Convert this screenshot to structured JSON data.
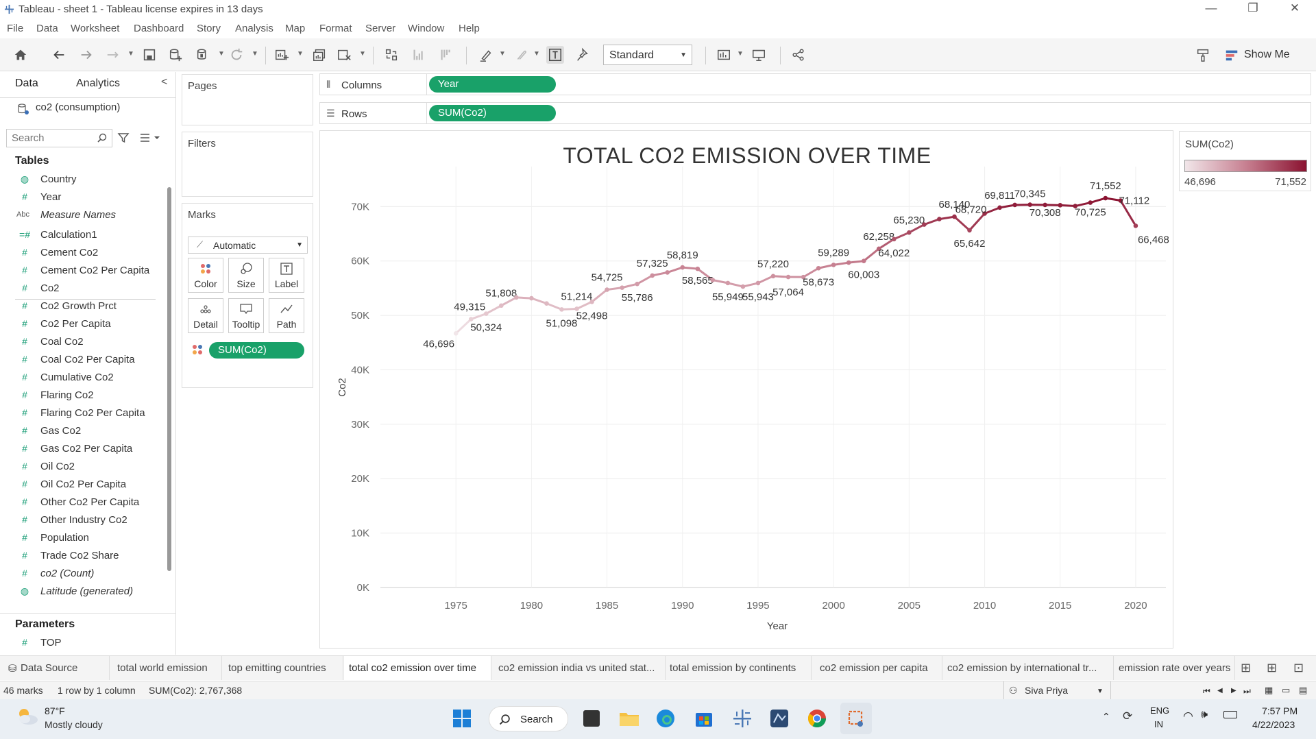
{
  "window": {
    "title": "Tableau - sheet 1 - Tableau license expires in 13 days",
    "minimize": "—",
    "maximize": "❐",
    "close": "✕"
  },
  "menu": [
    "File",
    "Data",
    "Worksheet",
    "Dashboard",
    "Story",
    "Analysis",
    "Map",
    "Format",
    "Server",
    "Window",
    "Help"
  ],
  "toolbar": {
    "fit_value": "Standard",
    "show_me": "Show Me"
  },
  "data_pane": {
    "tab_data": "Data",
    "tab_analytics": "Analytics",
    "data_source": "co2 (consumption)",
    "search_placeholder": "Search",
    "tables_heading": "Tables",
    "fields": [
      {
        "icon": "globe",
        "label": "Country"
      },
      {
        "icon": "#",
        "label": "Year"
      },
      {
        "icon": "Abc",
        "label": "Measure Names",
        "italic": true
      },
      {
        "icon": "=#",
        "label": "Calculation1"
      },
      {
        "icon": "#",
        "label": "Cement Co2"
      },
      {
        "icon": "#",
        "label": "Cement Co2 Per Capita"
      },
      {
        "icon": "#",
        "label": "Co2"
      },
      {
        "icon": "#",
        "label": "Co2 Growth Prct"
      },
      {
        "icon": "#",
        "label": "Co2 Per Capita"
      },
      {
        "icon": "#",
        "label": "Coal Co2"
      },
      {
        "icon": "#",
        "label": "Coal Co2 Per Capita"
      },
      {
        "icon": "#",
        "label": "Cumulative Co2"
      },
      {
        "icon": "#",
        "label": "Flaring Co2"
      },
      {
        "icon": "#",
        "label": "Flaring Co2 Per Capita"
      },
      {
        "icon": "#",
        "label": "Gas Co2"
      },
      {
        "icon": "#",
        "label": "Gas Co2 Per Capita"
      },
      {
        "icon": "#",
        "label": "Oil Co2"
      },
      {
        "icon": "#",
        "label": "Oil Co2 Per Capita"
      },
      {
        "icon": "#",
        "label": "Other Co2 Per Capita"
      },
      {
        "icon": "#",
        "label": "Other Industry Co2"
      },
      {
        "icon": "#",
        "label": "Population"
      },
      {
        "icon": "#",
        "label": "Trade Co2 Share"
      },
      {
        "icon": "#",
        "label": "co2 (Count)",
        "italic": true
      },
      {
        "icon": "globe",
        "label": "Latitude (generated)",
        "italic": true
      }
    ],
    "parameters_heading": "Parameters",
    "parameters": [
      {
        "icon": "#",
        "label": "TOP"
      }
    ]
  },
  "cards": {
    "pages": "Pages",
    "filters": "Filters",
    "marks": "Marks",
    "mark_type": "Automatic",
    "mark_buttons": [
      "Color",
      "Size",
      "Label",
      "Detail",
      "Tooltip",
      "Path"
    ],
    "mark_pill": "SUM(Co2)"
  },
  "shelves": {
    "columns_label": "Columns",
    "columns_pill": "Year",
    "rows_label": "Rows",
    "rows_pill": "SUM(Co2)"
  },
  "legend": {
    "title": "SUM(Co2)",
    "min": "46,696",
    "max": "71,552"
  },
  "chart_data": {
    "type": "line",
    "title": "TOTAL CO2 EMISSION OVER TIME",
    "xlabel": "Year",
    "ylabel": "Co2",
    "xlim": [
      1970,
      2022
    ],
    "ylim": [
      0,
      70000
    ],
    "x_ticks": [
      "1975",
      "1980",
      "1985",
      "1990",
      "1995",
      "2000",
      "2005",
      "2010",
      "2015",
      "2020"
    ],
    "y_ticks": [
      "0K",
      "10K",
      "20K",
      "30K",
      "40K",
      "50K",
      "60K",
      "70K"
    ],
    "colors": {
      "low": "#f1e6e9",
      "high": "#8a1230"
    },
    "x": [
      1975,
      1976,
      1977,
      1978,
      1979,
      1980,
      1981,
      1982,
      1983,
      1984,
      1985,
      1986,
      1987,
      1988,
      1989,
      1990,
      1991,
      1992,
      1993,
      1994,
      1995,
      1996,
      1997,
      1998,
      1999,
      2000,
      2001,
      2002,
      2003,
      2004,
      2005,
      2006,
      2007,
      2008,
      2009,
      2010,
      2011,
      2012,
      2013,
      2014,
      2015,
      2016,
      2017,
      2018,
      2019,
      2020
    ],
    "y": [
      46696,
      49315,
      50324,
      51808,
      53300,
      53150,
      52200,
      51098,
      51214,
      52498,
      54725,
      55100,
      55786,
      57325,
      57900,
      58819,
      58565,
      56500,
      55949,
      55300,
      55943,
      57220,
      57064,
      57050,
      58673,
      59289,
      59700,
      60003,
      62258,
      64022,
      65230,
      66700,
      67700,
      68140,
      65642,
      68720,
      69811,
      70300,
      70345,
      70308,
      70250,
      70100,
      70725,
      71552,
      71112,
      66468
    ],
    "labels": {
      "1975": "46,696",
      "1976": "49,315",
      "1977": "50,324",
      "1978": "51,808",
      "1982": "51,098",
      "1983": "51,214",
      "1984": "52,498",
      "1985": "54,725",
      "1987": "55,786",
      "1988": "57,325",
      "1990": "58,819",
      "1991": "58,565",
      "1993": "55,949",
      "1995": "55,943",
      "1996": "57,220",
      "1997": "57,064",
      "1999": "58,673",
      "2000": "59,289",
      "2002": "60,003",
      "2003": "62,258",
      "2004": "64,022",
      "2005": "65,230",
      "2008": "68,140",
      "2009": "65,642",
      "2010": "68,720",
      "2011": "69,811",
      "2013": "70,345",
      "2014": "70,308",
      "2017": "70,725",
      "2018": "71,552",
      "2019": "71,112",
      "2020": "66,468"
    }
  },
  "sheet_tabs": {
    "data_source": "Data Source",
    "tabs": [
      "total world emission",
      "top emitting countries",
      "total co2 emission over time",
      "co2 emission india vs united stat...",
      "total emission by continents",
      "co2 emission per capita",
      "co2 emission by international tr...",
      "emission rate over years"
    ],
    "active": "total co2 emission over time"
  },
  "status": {
    "marks": "46 marks",
    "rows_cols": "1 row by 1 column",
    "sum": "SUM(Co2): 2,767,368",
    "user": "Siva Priya"
  },
  "taskbar": {
    "temp": "87°F",
    "weather": "Mostly cloudy",
    "search": "Search",
    "lang1": "ENG",
    "lang2": "IN",
    "time": "7:57 PM",
    "date": "4/22/2023"
  }
}
